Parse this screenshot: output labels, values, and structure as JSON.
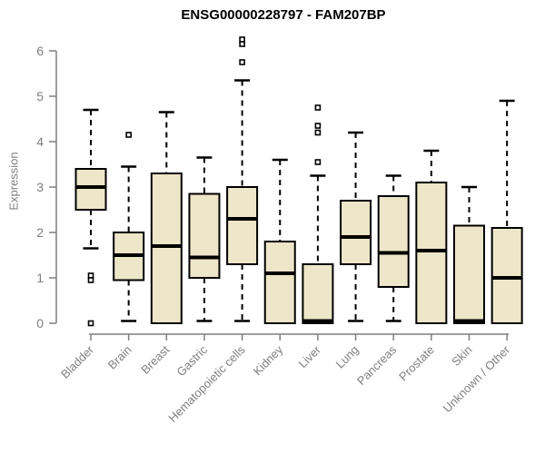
{
  "chart_data": {
    "type": "boxplot",
    "title": "ENSG00000228797 - FAM207BP",
    "ylabel": "Expression",
    "xlabel": "",
    "ylim": [
      0,
      6.3
    ],
    "yticks": [
      0,
      1,
      2,
      3,
      4,
      5,
      6
    ],
    "grid": false,
    "legend": "none",
    "categories": [
      "Bladder",
      "Brain",
      "Breast",
      "Gastric",
      "Hematopoietic cells",
      "Kidney",
      "Liver",
      "Lung",
      "Pancreas",
      "Prostate",
      "Skin",
      "Unknown / Other"
    ],
    "boxes": [
      {
        "category": "Bladder",
        "whisker_low": 1.65,
        "q1": 2.5,
        "median": 3.0,
        "q3": 3.4,
        "whisker_high": 4.7,
        "outliers": [
          1.05,
          0.95,
          0.0
        ]
      },
      {
        "category": "Brain",
        "whisker_low": 0.05,
        "q1": 0.95,
        "median": 1.5,
        "q3": 2.0,
        "whisker_high": 3.45,
        "outliers": [
          4.15
        ]
      },
      {
        "category": "Breast",
        "whisker_low": 0.0,
        "q1": 0.0,
        "median": 1.7,
        "q3": 3.3,
        "whisker_high": 4.65,
        "outliers": []
      },
      {
        "category": "Gastric",
        "whisker_low": 0.05,
        "q1": 1.0,
        "median": 1.45,
        "q3": 2.85,
        "whisker_high": 3.65,
        "outliers": []
      },
      {
        "category": "Hematopoietic cells",
        "whisker_low": 0.05,
        "q1": 1.3,
        "median": 2.3,
        "q3": 3.0,
        "whisker_high": 5.35,
        "outliers": [
          6.25,
          6.15,
          5.75
        ]
      },
      {
        "category": "Kidney",
        "whisker_low": 0.0,
        "q1": 0.0,
        "median": 1.1,
        "q3": 1.8,
        "whisker_high": 3.6,
        "outliers": []
      },
      {
        "category": "Liver",
        "whisker_low": 0.0,
        "q1": 0.0,
        "median": 0.05,
        "q3": 1.3,
        "whisker_high": 3.25,
        "outliers": [
          4.75,
          4.35,
          4.2,
          3.55
        ]
      },
      {
        "category": "Lung",
        "whisker_low": 0.05,
        "q1": 1.3,
        "median": 1.9,
        "q3": 2.7,
        "whisker_high": 4.2,
        "outliers": []
      },
      {
        "category": "Pancreas",
        "whisker_low": 0.05,
        "q1": 0.8,
        "median": 1.55,
        "q3": 2.8,
        "whisker_high": 3.25,
        "outliers": []
      },
      {
        "category": "Prostate",
        "whisker_low": 0.0,
        "q1": 0.0,
        "median": 1.6,
        "q3": 3.1,
        "whisker_high": 3.8,
        "outliers": []
      },
      {
        "category": "Skin",
        "whisker_low": 0.0,
        "q1": 0.0,
        "median": 0.05,
        "q3": 2.15,
        "whisker_high": 3.0,
        "outliers": []
      },
      {
        "category": "Unknown / Other",
        "whisker_low": 0.0,
        "q1": 0.0,
        "median": 1.0,
        "q3": 2.1,
        "whisker_high": 4.9,
        "outliers": []
      }
    ],
    "colors": {
      "box_fill": "#EDE6C8",
      "box_border": "#000000",
      "median": "#000000",
      "axis": "#7f7f7f",
      "tick_label": "#7f7f7f",
      "title": "#000000",
      "background": "#ffffff"
    }
  }
}
